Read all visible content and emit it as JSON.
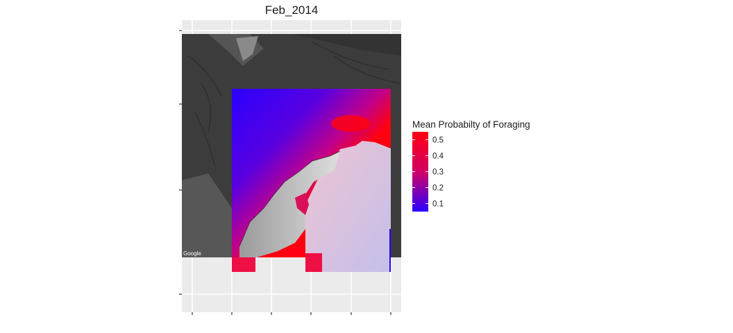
{
  "chart_data": {
    "type": "heatmap",
    "title": "Feb_2014",
    "xlabel": "",
    "ylabel": "",
    "legend": {
      "title": "Mean Probabilty of Foraging",
      "position": "right",
      "range": [
        0.05,
        0.55
      ],
      "ticks": [
        0.5,
        0.4,
        0.3,
        0.2,
        0.1
      ],
      "tick_labels": [
        "0.5",
        "0.4",
        "0.3",
        "0.2",
        "0.1"
      ],
      "colors": {
        "low": "#2a00ff",
        "mid": "#d10066",
        "high": "#ff0010"
      }
    },
    "basemap": {
      "attribution": "Google",
      "style": "satellite grayscale"
    },
    "grid": true
  }
}
